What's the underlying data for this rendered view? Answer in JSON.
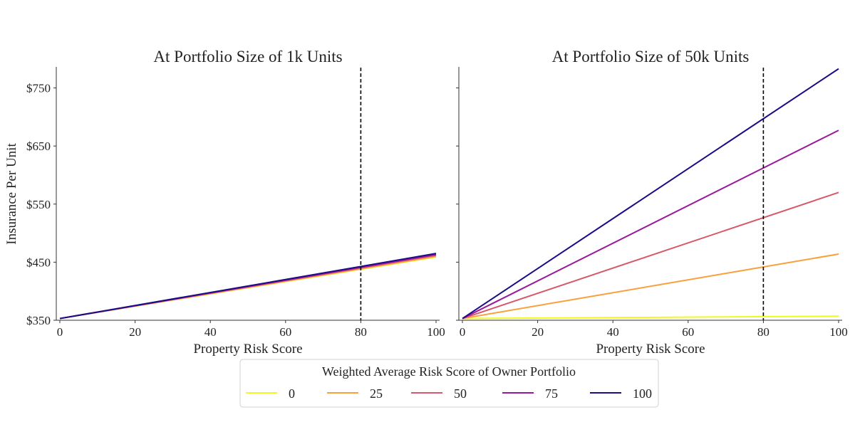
{
  "chart_data": [
    {
      "type": "line",
      "title": "At Portfolio Size of  1k Units",
      "xlabel": "Property Risk Score",
      "ylabel": "Insurance Per Unit",
      "xlim": [
        0,
        100
      ],
      "ylim": [
        350,
        785
      ],
      "xticks": [
        0,
        20,
        40,
        60,
        80,
        100
      ],
      "xtick_labels": [
        "0",
        "20",
        "40",
        "60",
        "80",
        "100"
      ],
      "yticks": [
        350,
        450,
        550,
        650,
        750
      ],
      "ytick_labels": [
        "$350",
        "$450",
        "$550",
        "$650",
        "$750"
      ],
      "vline": 80,
      "x": [
        0,
        100
      ],
      "series": [
        {
          "name": "0",
          "color": "#f0f921",
          "values": [
            353,
            459
          ]
        },
        {
          "name": "25",
          "color": "#fb9f3a",
          "values": [
            353,
            460
          ]
        },
        {
          "name": "50",
          "color": "#d8576b",
          "values": [
            353,
            462
          ]
        },
        {
          "name": "75",
          "color": "#9c179e",
          "values": [
            353,
            463
          ]
        },
        {
          "name": "100",
          "color": "#1a0c86",
          "values": [
            353,
            465
          ]
        }
      ]
    },
    {
      "type": "line",
      "title": "At Portfolio Size of  50k Units",
      "xlabel": "Property Risk Score",
      "ylabel": "",
      "xlim": [
        0,
        100
      ],
      "ylim": [
        350,
        785
      ],
      "xticks": [
        0,
        20,
        40,
        60,
        80,
        100
      ],
      "xtick_labels": [
        "0",
        "20",
        "40",
        "60",
        "80",
        "100"
      ],
      "yticks": [
        350,
        450,
        550,
        650,
        750
      ],
      "ytick_labels": [],
      "vline": 80,
      "x": [
        0,
        100
      ],
      "series": [
        {
          "name": "0",
          "color": "#f0f921",
          "values": [
            353,
            357
          ]
        },
        {
          "name": "25",
          "color": "#fb9f3a",
          "values": [
            353,
            464
          ]
        },
        {
          "name": "50",
          "color": "#d8576b",
          "values": [
            353,
            570
          ]
        },
        {
          "name": "75",
          "color": "#9c179e",
          "values": [
            353,
            677
          ]
        },
        {
          "name": "100",
          "color": "#1a0c86",
          "values": [
            353,
            783
          ]
        }
      ]
    }
  ],
  "legend": {
    "title": "Weighted Average Risk Score of  Owner Portfolio",
    "placement": "bottom-center",
    "entries": [
      {
        "label": "0",
        "color": "#f0f921"
      },
      {
        "label": "25",
        "color": "#fb9f3a"
      },
      {
        "label": "50",
        "color": "#d8576b"
      },
      {
        "label": "75",
        "color": "#9c179e"
      },
      {
        "label": "100",
        "color": "#1a0c86"
      }
    ]
  }
}
